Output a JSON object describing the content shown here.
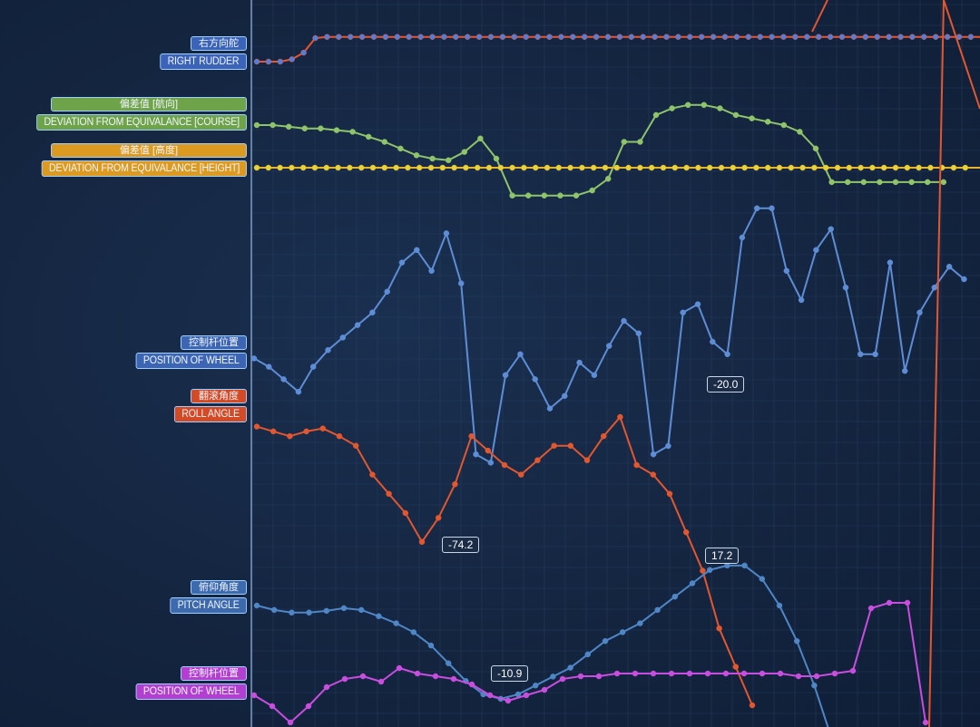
{
  "colors": {
    "rudder": "#e8552e",
    "rudder_point": "#4f7fe0",
    "course": "#8fc46a",
    "height": "#e8b22c",
    "height_point": "#e3d43a",
    "wheel": "#5e8dd6",
    "roll": "#e2572f",
    "pitch": "#4f86c6",
    "wheel2": "#c94ddf",
    "grid": "#2f4a6e",
    "axis": "#9fc3ee"
  },
  "labels": [
    {
      "key": "rudder",
      "zh": "右方向舵",
      "en": "RIGHT RUDDER",
      "color": "#3b63b8"
    },
    {
      "key": "course",
      "zh": "偏差值 [航向]",
      "en": "DEVIATION FROM EQUIVALANCE [COURSE]",
      "color": "#6fa34a"
    },
    {
      "key": "height",
      "zh": "偏差值 [高度]",
      "en": "DEVIATION FROM EQUIVALANCE [HEIGHT]",
      "color": "#dd9a20"
    },
    {
      "key": "wheel",
      "zh": "控制杆位置",
      "en": "POSITION OF WHEEL",
      "color": "#3c66b4"
    },
    {
      "key": "roll",
      "zh": "翻滚角度",
      "en": "ROLL ANGLE",
      "color": "#d44a25"
    },
    {
      "key": "pitch",
      "zh": "俯仰角度",
      "en": "PITCH ANGLE",
      "color": "#3c6aad"
    },
    {
      "key": "wheel2",
      "zh": "控制杆位置",
      "en": "POSITION OF WHEEL",
      "color": "#b23fd0"
    }
  ],
  "chart_data": {
    "type": "line",
    "grid": true,
    "series": [
      {
        "name": "RIGHT RUDDER",
        "values": [
          0,
          0,
          0,
          0.1,
          0.38,
          1.0,
          1.05,
          1.05,
          1.05,
          1.05,
          1.05,
          1.05,
          1.05,
          1.05,
          1.05,
          1.05,
          1.05,
          1.05,
          1.05,
          1.05,
          1.05,
          1.05,
          1.05,
          1.05,
          1.05,
          1.05,
          1.05,
          1.05,
          1.05,
          1.05,
          1.05,
          1.05,
          1.05,
          1.05,
          1.05,
          1.05,
          1.05,
          1.05,
          1.05,
          1.05,
          1.05,
          1.05,
          1.05,
          1.05,
          1.05,
          1.05,
          1.05,
          1.05,
          1.05,
          1.05,
          1.05,
          1.05,
          1.05,
          1.05,
          1.05,
          1.05,
          1.05,
          1.05,
          1.05,
          1.05,
          1.05,
          1.05,
          1.05,
          1.05
        ]
      },
      {
        "name": "DEVIATION FROM EQUIVALANCE [COURSE]",
        "values": [
          0,
          0,
          -0.05,
          -0.1,
          -0.1,
          -0.15,
          -0.2,
          -0.35,
          -0.5,
          -0.7,
          -0.9,
          -1.0,
          -1.05,
          -0.8,
          -0.4,
          -1.0,
          -2.1,
          -2.1,
          -2.1,
          -2.1,
          -2.1,
          -1.95,
          -1.6,
          -0.5,
          -0.5,
          0.3,
          0.5,
          0.6,
          0.6,
          0.5,
          0.3,
          0.2,
          0.1,
          0.0,
          -0.2,
          -0.7,
          -1.7,
          -1.7,
          -1.7,
          -1.7,
          -1.7,
          -1.7,
          -1.7,
          -1.7
        ]
      },
      {
        "name": "DEVIATION FROM EQUIVALANCE [HEIGHT]",
        "values": [
          0,
          0,
          0,
          0,
          0,
          0,
          0,
          0,
          0,
          0,
          0,
          0,
          0,
          0,
          0,
          0,
          0,
          0,
          0,
          0,
          0,
          0,
          0,
          0,
          0,
          0,
          0,
          0,
          0,
          0,
          0,
          0,
          0,
          0,
          0,
          0,
          0,
          0,
          0,
          0,
          0,
          0,
          0,
          0,
          0,
          0,
          0,
          0,
          0,
          0,
          0,
          0,
          0,
          0,
          0,
          0,
          0,
          0,
          0,
          0,
          0,
          0,
          0,
          0
        ]
      },
      {
        "name": "POSITION OF WHEEL",
        "values": [
          0.05,
          -0.05,
          -0.2,
          -0.35,
          -0.05,
          0.15,
          0.3,
          0.45,
          0.6,
          0.85,
          1.2,
          1.35,
          1.1,
          1.55,
          0.95,
          -1.1,
          -1.2,
          -0.15,
          0.1,
          -0.2,
          -0.55,
          -0.4,
          0.0,
          -0.15,
          0.2,
          0.5,
          0.35,
          -1.1,
          -1.0,
          0.6,
          0.7,
          0.25,
          0.1,
          1.5,
          1.85,
          1.85,
          1.1,
          0.75,
          1.35,
          1.6,
          0.9,
          0.1,
          0.1,
          1.2,
          -0.1,
          0.6,
          0.9,
          1.15,
          1.0
        ]
      },
      {
        "name": "ROLL ANGLE",
        "values": [
          -0.1,
          -0.15,
          -0.2,
          -0.15,
          -0.12,
          -0.2,
          -0.3,
          -0.6,
          -0.8,
          -1.0,
          -1.3,
          -1.05,
          -0.7,
          -0.2,
          -0.35,
          -0.5,
          -0.6,
          -0.45,
          -0.3,
          -0.3,
          -0.45,
          -0.2,
          0.0,
          -0.5,
          -0.6,
          -0.8,
          -1.2,
          -1.6,
          -2.2,
          -2.6,
          -3.0
        ]
      },
      {
        "name": "PITCH ANGLE",
        "values": [
          0,
          -0.05,
          -0.08,
          -0.08,
          -0.06,
          -0.03,
          -0.05,
          -0.12,
          -0.2,
          -0.3,
          -0.45,
          -0.65,
          -0.85,
          -1.0,
          -1.05,
          -1.0,
          -0.9,
          -0.8,
          -0.7,
          -0.55,
          -0.4,
          -0.3,
          -0.2,
          -0.05,
          0.1,
          0.25,
          0.4,
          0.45,
          0.45,
          0.3,
          0.0,
          -0.4,
          -0.9,
          -1.5
        ]
      },
      {
        "name": "POSITION OF WHEEL",
        "values": [
          0,
          -0.2,
          -0.5,
          -0.2,
          0.15,
          0.3,
          0.35,
          0.25,
          0.5,
          0.4,
          0.35,
          0.3,
          0.2,
          0.0,
          -0.1,
          0.0,
          0.1,
          0.3,
          0.35,
          0.35,
          0.4,
          0.4,
          0.4,
          0.4,
          0.4,
          0.4,
          0.4,
          0.4,
          0.4,
          0.4,
          0.35,
          0.35,
          0.4,
          0.45,
          1.6,
          1.7,
          1.7,
          -0.5
        ]
      }
    ],
    "annotations": [
      {
        "text": "-74.2",
        "series": "ROLL ANGLE"
      },
      {
        "text": "-20.0",
        "series": "ROLL ANGLE"
      },
      {
        "text": "17.2",
        "series": "PITCH ANGLE"
      },
      {
        "text": "-10.9",
        "series": "PITCH ANGLE"
      }
    ]
  }
}
